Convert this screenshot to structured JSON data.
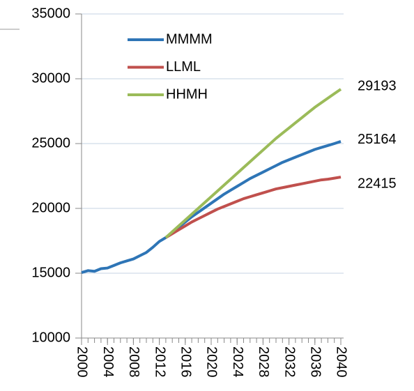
{
  "chart_data": {
    "type": "line",
    "x": [
      2000,
      2001,
      2002,
      2003,
      2004,
      2005,
      2006,
      2007,
      2008,
      2009,
      2010,
      2011,
      2012,
      2013,
      2014,
      2015,
      2016,
      2017,
      2018,
      2019,
      2020,
      2021,
      2022,
      2023,
      2024,
      2025,
      2026,
      2027,
      2028,
      2029,
      2030,
      2031,
      2032,
      2033,
      2034,
      2035,
      2036,
      2037,
      2038,
      2039,
      2040
    ],
    "series": [
      {
        "name": "MMMM",
        "color": "#2e75b6",
        "values": [
          15050,
          15200,
          15150,
          15350,
          15400,
          15600,
          15800,
          15950,
          16100,
          16350,
          16600,
          17000,
          17450,
          17750,
          18150,
          18550,
          18950,
          19350,
          19700,
          20050,
          20400,
          20750,
          21100,
          21400,
          21700,
          22000,
          22300,
          22550,
          22800,
          23050,
          23300,
          23550,
          23750,
          23950,
          24150,
          24350,
          24550,
          24700,
          24850,
          25000,
          25164
        ]
      },
      {
        "name": "LLML",
        "color": "#c0504d",
        "values": [
          null,
          null,
          null,
          null,
          null,
          null,
          null,
          null,
          null,
          null,
          null,
          null,
          null,
          17750,
          18050,
          18350,
          18650,
          18950,
          19200,
          19450,
          19700,
          19950,
          20150,
          20350,
          20550,
          20750,
          20900,
          21050,
          21200,
          21350,
          21500,
          21600,
          21700,
          21800,
          21900,
          22000,
          22100,
          22200,
          22250,
          22330,
          22415
        ]
      },
      {
        "name": "HHMH",
        "color": "#9bbb59",
        "values": [
          null,
          null,
          null,
          null,
          null,
          null,
          null,
          null,
          null,
          null,
          null,
          null,
          null,
          17750,
          18200,
          18650,
          19100,
          19550,
          20000,
          20450,
          20900,
          21350,
          21800,
          22250,
          22700,
          23150,
          23600,
          24050,
          24500,
          24950,
          25400,
          25800,
          26200,
          26600,
          27000,
          27400,
          27800,
          28150,
          28500,
          28850,
          29193
        ]
      }
    ],
    "xlim": [
      2000,
      2040
    ],
    "xticks": [
      2000,
      2004,
      2008,
      2012,
      2016,
      2020,
      2024,
      2028,
      2032,
      2036,
      2040
    ],
    "ylim": [
      10000,
      35000
    ],
    "yticks": [
      10000,
      15000,
      20000,
      25000,
      30000,
      35000
    ],
    "grid": true,
    "legend": "top-left"
  }
}
